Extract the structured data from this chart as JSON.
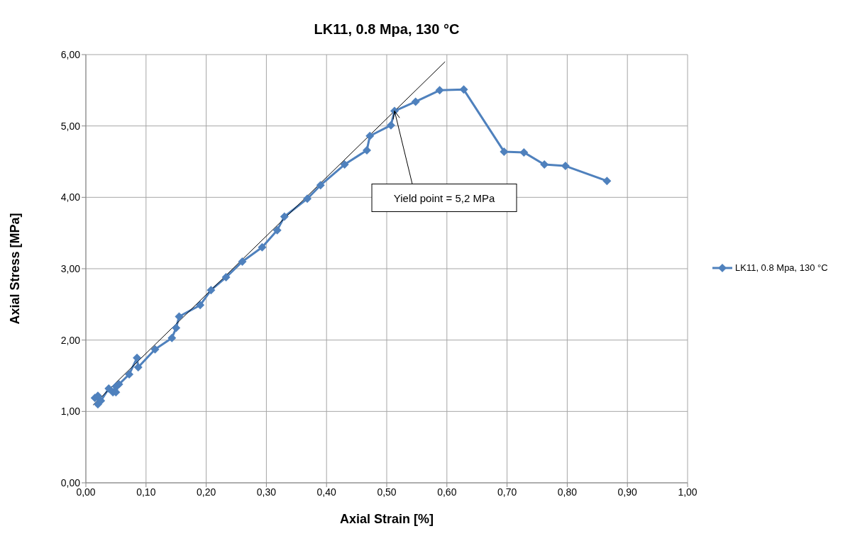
{
  "chart_data": {
    "type": "line",
    "title": "LK11, 0.8 Mpa, 130 °C",
    "xlabel": "Axial Strain [%]",
    "ylabel": "Axial Stress [MPa]",
    "xlim": [
      0,
      1
    ],
    "ylim": [
      0,
      6
    ],
    "xticks": [
      {
        "value": 0,
        "label": "0,00"
      },
      {
        "value": 0.1,
        "label": "0,10"
      },
      {
        "value": 0.2,
        "label": "0,20"
      },
      {
        "value": 0.3,
        "label": "0,30"
      },
      {
        "value": 0.4,
        "label": "0,40"
      },
      {
        "value": 0.5,
        "label": "0,50"
      },
      {
        "value": 0.6,
        "label": "0,60"
      },
      {
        "value": 0.7,
        "label": "0,70"
      },
      {
        "value": 0.8,
        "label": "0,80"
      },
      {
        "value": 0.9,
        "label": "0,90"
      },
      {
        "value": 1,
        "label": "1,00"
      }
    ],
    "yticks": [
      {
        "value": 0,
        "label": "0,00"
      },
      {
        "value": 1,
        "label": "1,00"
      },
      {
        "value": 2,
        "label": "2,00"
      },
      {
        "value": 3,
        "label": "3,00"
      },
      {
        "value": 4,
        "label": "4,00"
      },
      {
        "value": 5,
        "label": "5,00"
      },
      {
        "value": 6,
        "label": "6,00"
      }
    ],
    "grid": true,
    "legend": "right",
    "series": [
      {
        "name": "LK11, 0.8 Mpa, 130 °C",
        "color": "#4f81bd",
        "marker": "diamond",
        "x": [
          0.015,
          0.02,
          0.02,
          0.025,
          0.038,
          0.045,
          0.05,
          0.05,
          0.055,
          0.072,
          0.085,
          0.087,
          0.115,
          0.143,
          0.15,
          0.155,
          0.19,
          0.208,
          0.233,
          0.26,
          0.293,
          0.318,
          0.33,
          0.368,
          0.39,
          0.43,
          0.467,
          0.472,
          0.507,
          0.513,
          0.548,
          0.588,
          0.628,
          0.695,
          0.728,
          0.762,
          0.797,
          0.866
        ],
        "values": [
          1.19,
          1.22,
          1.1,
          1.15,
          1.32,
          1.27,
          1.35,
          1.27,
          1.38,
          1.52,
          1.75,
          1.62,
          1.87,
          2.03,
          2.17,
          2.33,
          2.49,
          2.7,
          2.88,
          3.1,
          3.3,
          3.54,
          3.73,
          3.98,
          4.17,
          4.46,
          4.66,
          4.86,
          5.01,
          5.21,
          5.34,
          5.5,
          5.51,
          4.64,
          4.63,
          4.46,
          4.44,
          4.23
        ]
      },
      {
        "type": "line",
        "color": "#000000",
        "marker": "none",
        "x": [
          0.012,
          0.597
        ],
        "values": [
          1.09,
          5.9
        ]
      }
    ],
    "annotations": [
      {
        "text": "Yield point = 5,2 MPa",
        "x": 0.513,
        "y": 5.21
      }
    ]
  }
}
